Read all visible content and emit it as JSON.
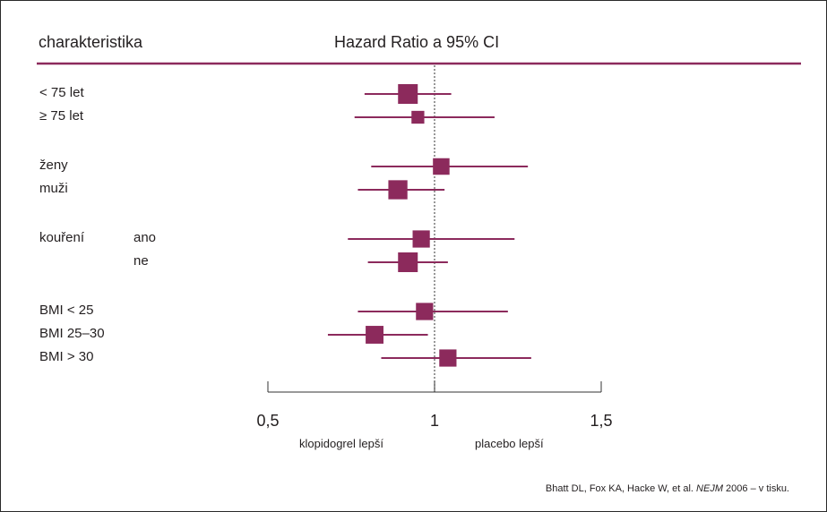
{
  "column_header": "charakteristika",
  "chart_header": "Hazard Ratio a 95% CI",
  "favours": {
    "left": "klopidogrel lepší",
    "right": "placebo lepší"
  },
  "citation": {
    "before": "Bhatt DL, Fox KA, Hacke W, et al. ",
    "journal": "NEJM",
    "after": " 2006 – v tisku."
  },
  "colors": {
    "marker": "#8c2a5c",
    "rule": "#8c2a5c",
    "text": "#231f20",
    "reference_line": "#555555"
  },
  "chart_data": {
    "type": "forest",
    "title": "Hazard Ratio a 95% CI",
    "xlim": [
      0.5,
      1.5
    ],
    "xticks": [
      0.5,
      1,
      1.5
    ],
    "tick_labels": [
      "0,5",
      "1",
      "1,5"
    ],
    "reference_line": 1,
    "groups": [
      {
        "label": "",
        "rows": [
          {
            "label": "< 75 let",
            "sublabel": "",
            "hr": 0.92,
            "ci": [
              0.79,
              1.05
            ],
            "weight": 1.0
          },
          {
            "label": "≥ 75 let",
            "sublabel": "",
            "hr": 0.95,
            "ci": [
              0.76,
              1.18
            ],
            "weight": 0.45
          }
        ]
      },
      {
        "label": "",
        "rows": [
          {
            "label": "ženy",
            "sublabel": "",
            "hr": 1.02,
            "ci": [
              0.81,
              1.28
            ],
            "weight": 0.75
          },
          {
            "label": "muži",
            "sublabel": "",
            "hr": 0.89,
            "ci": [
              0.77,
              1.03
            ],
            "weight": 0.95
          }
        ]
      },
      {
        "label": "",
        "rows": [
          {
            "label": "kouření",
            "sublabel": "ano",
            "hr": 0.96,
            "ci": [
              0.74,
              1.24
            ],
            "weight": 0.8
          },
          {
            "label": "",
            "sublabel": "ne",
            "hr": 0.92,
            "ci": [
              0.8,
              1.04
            ],
            "weight": 1.0
          }
        ]
      },
      {
        "label": "",
        "rows": [
          {
            "label": "BMI < 25",
            "sublabel": "",
            "hr": 0.97,
            "ci": [
              0.77,
              1.22
            ],
            "weight": 0.8
          },
          {
            "label": "BMI 25–30",
            "sublabel": "",
            "hr": 0.82,
            "ci": [
              0.68,
              0.98
            ],
            "weight": 0.85
          },
          {
            "label": "BMI > 30",
            "sublabel": "",
            "hr": 1.04,
            "ci": [
              0.84,
              1.29
            ],
            "weight": 0.8
          }
        ]
      }
    ]
  }
}
